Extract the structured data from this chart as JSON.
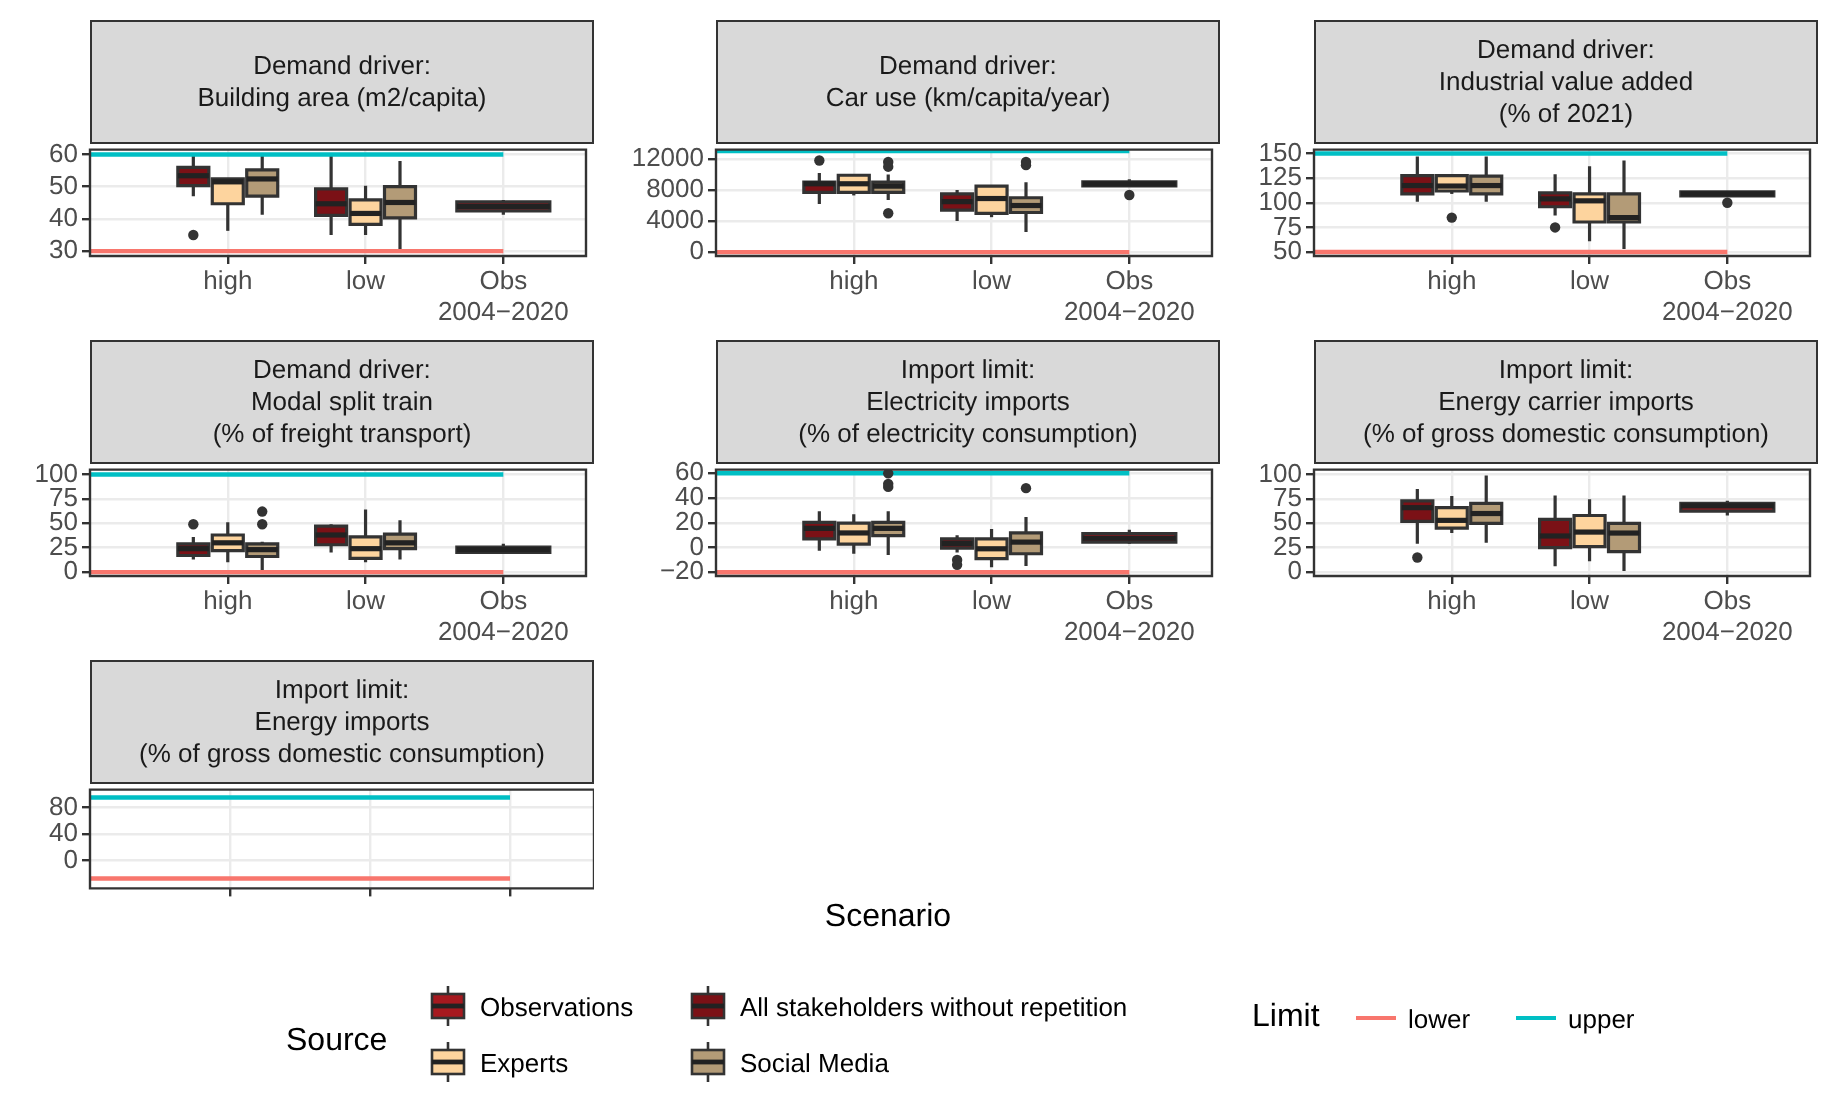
{
  "chart_data": [
    {
      "type": "box",
      "title": "Demand driver:\nBuilding area (m2/capita)",
      "categories": [
        "high",
        "low",
        "Obs\n2004−2020"
      ],
      "ylim": [
        28.5,
        61.5
      ],
      "yticks": [
        30,
        40,
        50,
        60
      ],
      "grid": true,
      "series": [
        {
          "color": "#a6191f",
          "boxes": [
            null,
            null,
            {
              "low": 41.3,
              "q1": 42.5,
              "median": 43.9,
              "q3": 45.3,
              "high": 45.9
            }
          ]
        },
        {
          "color": "#7b1116",
          "boxes": [
            {
              "low": 47,
              "q1": 50.3,
              "median": 53.4,
              "q3": 56,
              "high": 59.6,
              "outliers": [
                35
              ]
            },
            {
              "low": 35,
              "q1": 41.1,
              "median": 44.7,
              "q3": 49.3,
              "high": 59.6
            },
            null
          ]
        },
        {
          "color": "#fdd49e",
          "boxes": [
            {
              "low": 36.3,
              "q1": 44.7,
              "median": 51.5,
              "q3": 52.4,
              "high": 52.4
            },
            {
              "low": 35,
              "q1": 38.3,
              "median": 41.7,
              "q3": 45.9,
              "high": 50.3
            },
            null
          ]
        },
        {
          "color": "#b39b77",
          "boxes": [
            {
              "low": 41.3,
              "q1": 47.1,
              "median": 52.4,
              "q3": 55.2,
              "high": 59.6
            },
            {
              "low": 30.6,
              "q1": 40.3,
              "median": 45.1,
              "q3": 50,
              "high": 58
            },
            null
          ]
        }
      ],
      "ref_lines": [
        {
          "axis": "y",
          "value": 60,
          "color": "#00bfc4"
        },
        {
          "axis": "y",
          "value": 30,
          "color": "#f8766d"
        }
      ]
    },
    {
      "type": "box",
      "title": "Demand driver:\nCar use (km/capita/year)",
      "categories": [
        "high",
        "low",
        "Obs\n2004−2020"
      ],
      "ylim": [
        -500,
        13200
      ],
      "yticks": [
        0,
        4000,
        8000,
        12000
      ],
      "grid": true,
      "series": [
        {
          "color": "#a6191f",
          "boxes": [
            null,
            null,
            {
              "low": 8540,
              "q1": 8540,
              "median": 8790,
              "q3": 9040,
              "high": 9380,
              "outliers": [
                7350
              ]
            }
          ]
        },
        {
          "color": "#7b1116",
          "boxes": [
            {
              "low": 6200,
              "q1": 7700,
              "median": 8800,
              "q3": 9000,
              "high": 10200,
              "outliers": [
                11800
              ]
            },
            {
              "low": 4000,
              "q1": 5400,
              "median": 6500,
              "q3": 7500,
              "high": 8000
            },
            null
          ]
        },
        {
          "color": "#fdd49e",
          "boxes": [
            {
              "low": 7300,
              "q1": 7700,
              "median": 8800,
              "q3": 9900,
              "high": 9900
            },
            {
              "low": 4500,
              "q1": 5000,
              "median": 6900,
              "q3": 8500,
              "high": 8500
            },
            null
          ]
        },
        {
          "color": "#b39b77",
          "boxes": [
            {
              "low": 6700,
              "q1": 7700,
              "median": 8500,
              "q3": 9000,
              "high": 10000,
              "outliers": [
                11600,
                11000,
                5000
              ]
            },
            {
              "low": 2600,
              "q1": 5100,
              "median": 6000,
              "q3": 7000,
              "high": 9000,
              "outliers": [
                11600,
                11200
              ]
            },
            null
          ]
        }
      ],
      "ref_lines": [
        {
          "axis": "y",
          "value": 13000,
          "color": "#00bfc4"
        },
        {
          "axis": "y",
          "value": 0,
          "color": "#f8766d"
        }
      ]
    },
    {
      "type": "box",
      "title": "Demand driver:\nIndustrial value added\n(% of 2021)",
      "categories": [
        "high",
        "low",
        "Obs\n2004−2020"
      ],
      "ylim": [
        46,
        154
      ],
      "yticks": [
        50,
        75,
        100,
        125,
        150
      ],
      "grid": true,
      "series": [
        {
          "color": "#a6191f",
          "boxes": [
            null,
            null,
            {
              "low": 107,
              "q1": 107,
              "median": 109,
              "q3": 111,
              "high": 111,
              "outliers": [
                100
              ]
            }
          ]
        },
        {
          "color": "#7b1116",
          "boxes": [
            {
              "low": 101,
              "q1": 109,
              "median": 117.5,
              "q3": 127.5,
              "high": 147
            },
            {
              "low": 87,
              "q1": 96,
              "median": 104,
              "q3": 110,
              "high": 129,
              "outliers": [
                75
              ]
            },
            null
          ]
        },
        {
          "color": "#fdd49e",
          "boxes": [
            {
              "low": 109,
              "q1": 112,
              "median": 117,
              "q3": 127.5,
              "high": 127.5,
              "outliers": [
                85
              ]
            },
            {
              "low": 61,
              "q1": 80.5,
              "median": 102,
              "q3": 109,
              "high": 137
            },
            null
          ]
        },
        {
          "color": "#b39b77",
          "boxes": [
            {
              "low": 101,
              "q1": 109,
              "median": 117.5,
              "q3": 127,
              "high": 147
            },
            {
              "low": 53,
              "q1": 80.5,
              "median": 85,
              "q3": 109,
              "high": 143
            },
            null
          ]
        }
      ],
      "ref_lines": [
        {
          "axis": "y",
          "value": 150,
          "color": "#00bfc4"
        },
        {
          "axis": "y",
          "value": 50,
          "color": "#f8766d"
        }
      ]
    },
    {
      "type": "box",
      "title": "Demand driver:\nModal split train\n(% of freight transport)",
      "categories": [
        "high",
        "low",
        "Obs\n2004−2020"
      ],
      "ylim": [
        -4,
        105
      ],
      "yticks": [
        0,
        25,
        50,
        75,
        100
      ],
      "grid": true,
      "series": [
        {
          "color": "#a6191f",
          "boxes": [
            null,
            null,
            {
              "low": 20,
              "q1": 20.3,
              "median": 23,
              "q3": 25.7,
              "high": 29
            }
          ]
        },
        {
          "color": "#7b1116",
          "boxes": [
            {
              "low": 13,
              "q1": 17,
              "median": 24,
              "q3": 29,
              "high": 36,
              "outliers": [
                49
              ]
            },
            {
              "low": 20,
              "q1": 28,
              "median": 38,
              "q3": 47,
              "high": 49
            },
            null
          ]
        },
        {
          "color": "#fdd49e",
          "boxes": [
            {
              "low": 10,
              "q1": 22,
              "median": 30,
              "q3": 38,
              "high": 51
            },
            {
              "low": 10,
              "q1": 14,
              "median": 24,
              "q3": 36,
              "high": 64
            },
            null
          ]
        },
        {
          "color": "#b39b77",
          "boxes": [
            {
              "low": 2,
              "q1": 16,
              "median": 23,
              "q3": 29,
              "high": 31,
              "outliers": [
                62,
                49
              ]
            },
            {
              "low": 13,
              "q1": 24,
              "median": 30,
              "q3": 39,
              "high": 53
            },
            null
          ]
        }
      ],
      "ref_lines": [
        {
          "axis": "y",
          "value": 100,
          "color": "#00bfc4"
        },
        {
          "axis": "y",
          "value": 0,
          "color": "#f8766d"
        }
      ]
    },
    {
      "type": "box",
      "title": "Import limit:\nElectricity imports\n(% of electricity consumption)",
      "xlabel": "Scenario",
      "categories": [
        "high",
        "low",
        "Obs\n2004−2020"
      ],
      "ylim": [
        -23,
        63
      ],
      "yticks": [
        {
          "value": -20,
          "label": "−20"
        },
        0,
        20,
        40,
        60
      ],
      "grid": true,
      "series": [
        {
          "color": "#a6191f",
          "boxes": [
            null,
            null,
            {
              "low": 3,
              "q1": 4.4,
              "median": 7.5,
              "q3": 11.3,
              "high": 14.4
            }
          ]
        },
        {
          "color": "#7b1116",
          "boxes": [
            {
              "low": -2.5,
              "q1": 7,
              "median": 15.5,
              "q3": 20.3,
              "high": 29.3
            },
            {
              "low": -4,
              "q1": -0.4,
              "median": 3.3,
              "q3": 7,
              "high": 10,
              "outliers": [
                -10,
                -14
              ]
            },
            null
          ]
        },
        {
          "color": "#fdd49e",
          "boxes": [
            {
              "low": -5,
              "q1": 2.8,
              "median": 11.8,
              "q3": 19.7,
              "high": 27
            },
            {
              "low": -16,
              "q1": -9,
              "median": -1,
              "q3": 7,
              "high": 15
            },
            null
          ]
        },
        {
          "color": "#b39b77",
          "boxes": [
            {
              "low": -6,
              "q1": 9.7,
              "median": 15.5,
              "q3": 20.3,
              "high": 29.3,
              "outliers": [
                60,
                51.5,
                49
              ]
            },
            {
              "low": -15,
              "q1": -5,
              "median": 4.4,
              "q3": 11.8,
              "high": 24.6,
              "outliers": [
                48
              ]
            },
            null
          ]
        }
      ],
      "ref_lines": [
        {
          "axis": "y",
          "value": 60,
          "color": "#00bfc4"
        },
        {
          "axis": "y",
          "value": -20,
          "color": "#f8766d"
        }
      ]
    },
    {
      "type": "box",
      "title": "Import limit:\nEnergy carrier imports\n(% of gross domestic consumption)",
      "categories": [
        "high",
        "low",
        "Obs\n2004−2020"
      ],
      "ylim": [
        -4,
        105
      ],
      "yticks": [
        0,
        25,
        50,
        75,
        100
      ],
      "grid": true,
      "series": [
        {
          "color": "#a6191f",
          "boxes": [
            null,
            null,
            {
              "low": 58,
              "q1": 62.4,
              "median": 67.8,
              "q3": 70.5,
              "high": 73
            }
          ]
        },
        {
          "color": "#7b1116",
          "boxes": [
            {
              "low": 29,
              "q1": 52,
              "median": 66,
              "q3": 73,
              "high": 85,
              "outliers": [
                15
              ]
            },
            {
              "low": 6,
              "q1": 25,
              "median": 37,
              "q3": 54,
              "high": 78.5
            },
            null
          ]
        },
        {
          "color": "#fdd49e",
          "boxes": [
            {
              "low": 40,
              "q1": 45,
              "median": 53,
              "q3": 66,
              "high": 78
            },
            {
              "low": 11,
              "q1": 26,
              "median": 41,
              "q3": 58,
              "high": 74.5
            },
            null
          ]
        },
        {
          "color": "#b39b77",
          "boxes": [
            {
              "low": 30,
              "q1": 50,
              "median": 60,
              "q3": 70.5,
              "high": 99
            },
            {
              "low": 1,
              "q1": 21,
              "median": 40,
              "q3": 50,
              "high": 78.5
            },
            null
          ]
        }
      ]
    },
    {
      "type": "box",
      "title": "Import limit:\nEnergy imports\n(% of gross domestic consumption)",
      "categories": [
        null,
        null,
        null
      ],
      "tick_labels": "y",
      "ylim": [
        -42,
        107
      ],
      "yticks": [
        0,
        40,
        80
      ],
      "grid": true,
      "legend": "bottom",
      "legend_title": "Source",
      "annotations": [
        "Limit"
      ],
      "series": [
        {
          "name": "Observations",
          "color": "#a6191f",
          "boxes": [
            null,
            null,
            null
          ]
        },
        {
          "name": "All stakeholders without repetition",
          "color": "#7b1116",
          "boxes": [
            null,
            null,
            null
          ]
        },
        {
          "name": "Experts",
          "color": "#fdd49e",
          "boxes": [
            null,
            null,
            null
          ]
        },
        {
          "name": "Social Media",
          "color": "#b39b77",
          "boxes": [
            null,
            null,
            null
          ]
        }
      ],
      "ref_lines": [
        {
          "axis": "y",
          "value": -27,
          "label": "lower",
          "color": "#f8766d"
        },
        {
          "axis": "y",
          "value": 95,
          "label": "upper",
          "color": "#00bfc4"
        }
      ]
    }
  ]
}
